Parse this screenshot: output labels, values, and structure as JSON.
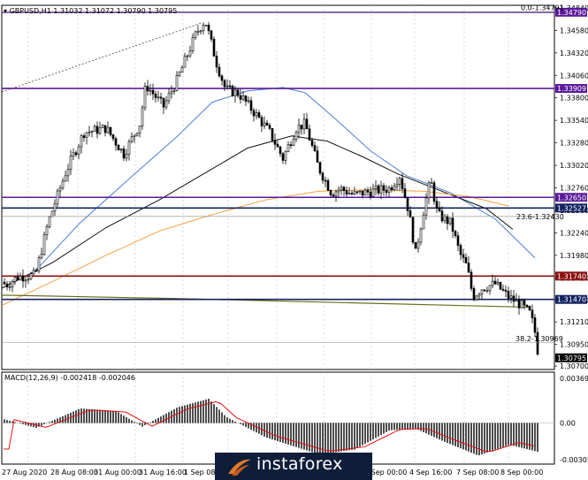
{
  "header": {
    "symbol_line": "GBPUSD,H1  1.31032 1.31072 1.30790 1.30795"
  },
  "price_axis": {
    "labels": [
      "1.34840",
      "1.34580",
      "1.34320",
      "1.34060",
      "1.33800",
      "1.33540",
      "1.33280",
      "1.33020",
      "1.32760",
      "1.32500",
      "1.32240",
      "1.31980",
      "1.31720",
      "1.31460",
      "1.31210",
      "1.30950",
      "1.30700"
    ],
    "range": [
      1.307,
      1.3487
    ]
  },
  "levels": [
    {
      "price": 1.3479,
      "label": "1.34790",
      "color": "#5b1a9a"
    },
    {
      "price": 1.33909,
      "label": "1.33909",
      "color": "#5b1a9a"
    },
    {
      "price": 1.3265,
      "label": "1.32650",
      "color": "#5b1a9a"
    },
    {
      "price": 1.32527,
      "label": "1.32527",
      "color": "#13235f"
    },
    {
      "price": 1.3174,
      "label": "1.31740",
      "color": "#8b1010"
    },
    {
      "price": 1.3147,
      "label": "1.31470",
      "color": "#13235f"
    }
  ],
  "current_price": {
    "value": 1.30795,
    "label": "1.30795"
  },
  "fib_labels": {
    "top": "0.0-1.34791",
    "mid": "23.6-1.32430",
    "bottom": "38.2-1.30969"
  },
  "time_axis": {
    "labels": [
      "27 Aug 2020",
      "28 Aug 08:00",
      "31 Aug 00:00",
      "31 Aug 16:00",
      "1 Sep 08:00",
      "2 Sep 00:00",
      "2 Sep 16:00",
      "3 Sep 08:00",
      "4 Sep 00:00",
      "4 Sep 16:00",
      "7 Sep 08:00",
      "8 Sep 00:00"
    ]
  },
  "macd": {
    "title": "MACD(12,26,9) -0.002418 -0.002046",
    "axis_labels": [
      "0.00369",
      "0.00",
      "-0.003051"
    ]
  },
  "watermark": {
    "text": "instaforex"
  },
  "colors": {
    "candle": "#000000",
    "ma_blue": "#4a7fd4",
    "ma_orange": "#f0a040",
    "ma_black": "#111111",
    "ma_olive": "#6b6b1a",
    "signal": "#e01010"
  }
}
